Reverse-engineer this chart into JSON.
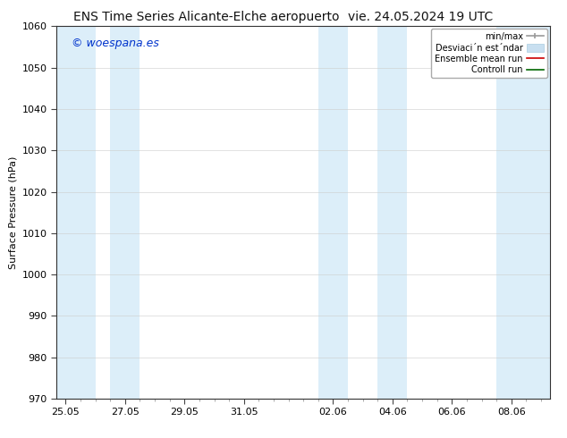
{
  "title_left": "ENS Time Series Alicante-Elche aeropuerto",
  "title_right": "vie. 24.05.2024 19 UTC",
  "ylabel": "Surface Pressure (hPa)",
  "ylim": [
    970,
    1060
  ],
  "yticks": [
    970,
    980,
    990,
    1000,
    1010,
    1020,
    1030,
    1040,
    1050,
    1060
  ],
  "xtick_labels": [
    "25.05",
    "27.05",
    "29.05",
    "31.05",
    "02.06",
    "04.06",
    "06.06",
    "08.06"
  ],
  "xtick_positions": [
    0,
    2,
    4,
    6,
    9,
    11,
    13,
    15
  ],
  "xlim": [
    -0.3,
    16.3
  ],
  "shaded_bands": [
    {
      "x_start": -0.3,
      "x_end": 1.0
    },
    {
      "x_start": 1.5,
      "x_end": 2.5
    },
    {
      "x_start": 8.5,
      "x_end": 9.5
    },
    {
      "x_start": 10.5,
      "x_end": 11.5
    },
    {
      "x_start": 14.5,
      "x_end": 16.3
    }
  ],
  "shaded_color": "#dceef9",
  "background_color": "#ffffff",
  "watermark_text": "© woespana.es",
  "watermark_color": "#0033cc",
  "legend_minmax_color": "#999999",
  "legend_std_color": "#c8dff0",
  "legend_ensemble_color": "#cc0000",
  "legend_control_color": "#006600",
  "title_fontsize": 10,
  "axis_label_fontsize": 8,
  "tick_fontsize": 8,
  "legend_fontsize": 7,
  "watermark_fontsize": 9
}
